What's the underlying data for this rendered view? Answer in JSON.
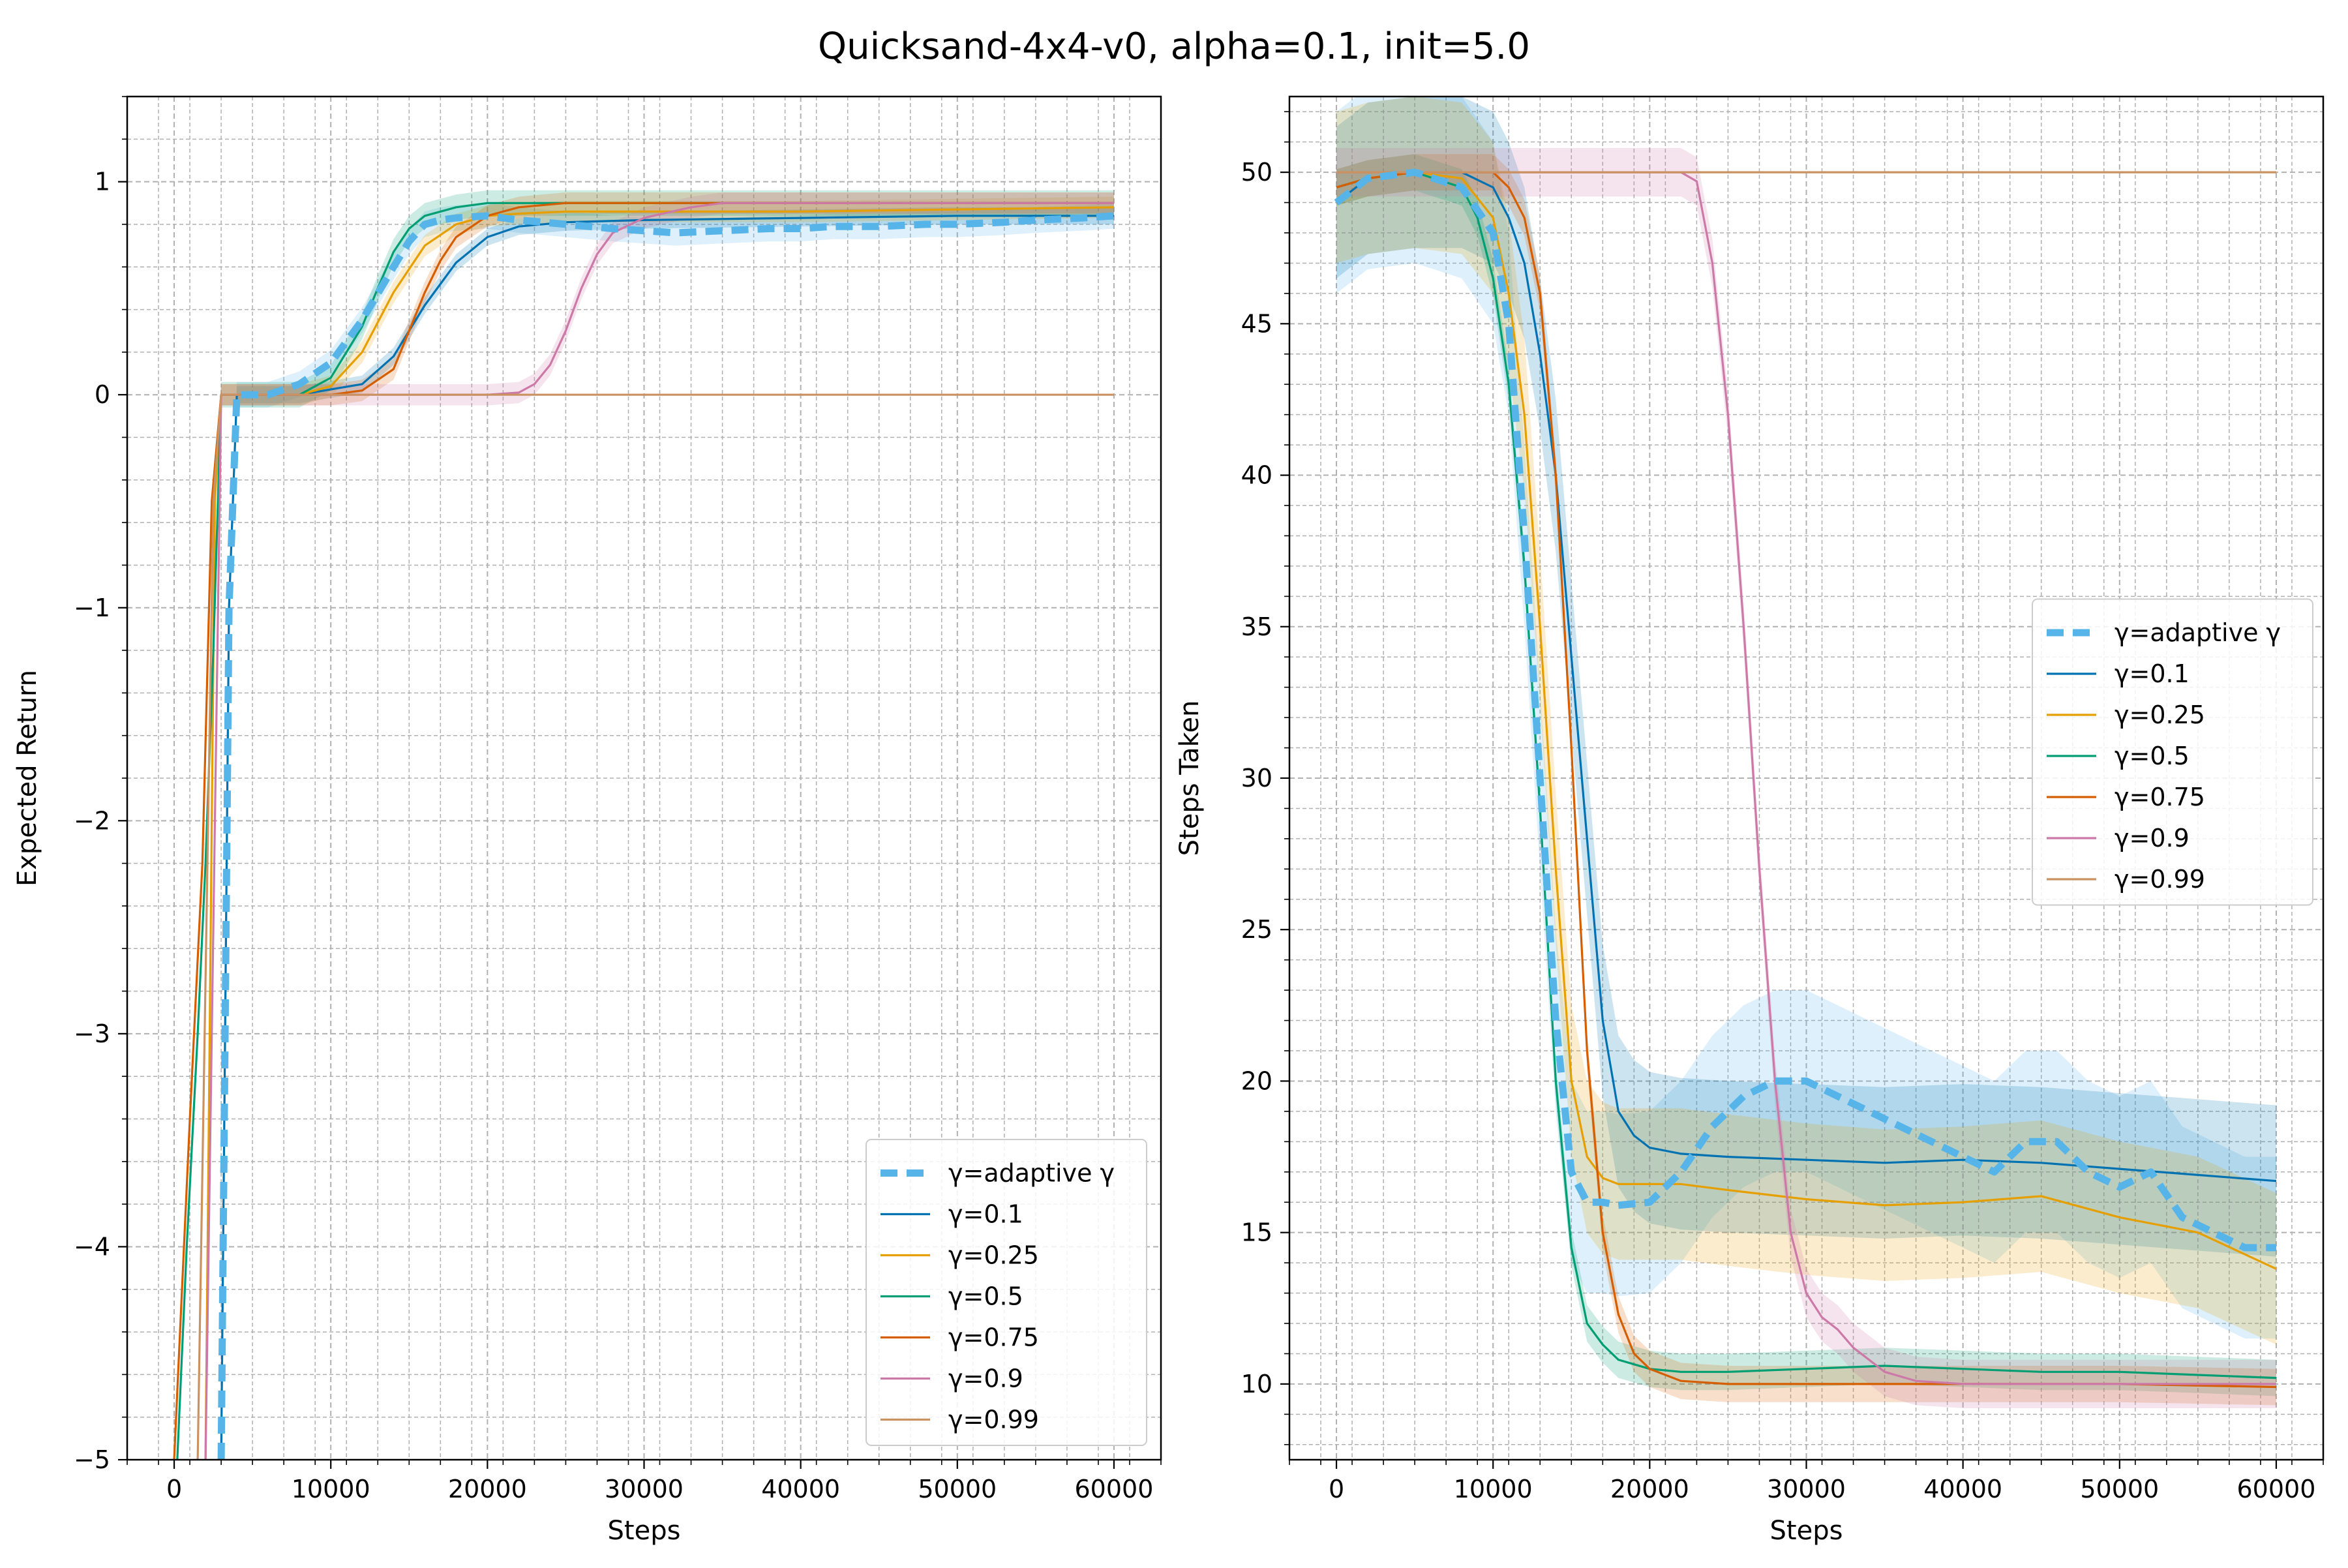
{
  "figure": {
    "title": "Quicksand-4x4-v0, alpha=0.1, init=5.0"
  },
  "colors": {
    "adaptive": "#56b4e9",
    "g0.1": "#0072b2",
    "g0.25": "#e69f00",
    "g0.5": "#009e73",
    "g0.75": "#d55e00",
    "g0.9": "#cc79a7",
    "g0.99": "#ca9161"
  },
  "chart_data": [
    {
      "type": "line",
      "xlabel": "Steps",
      "ylabel": "Expected Return",
      "xlim": [
        -3000,
        63000
      ],
      "ylim": [
        -5,
        1.4
      ],
      "xticks": [
        0,
        10000,
        20000,
        30000,
        40000,
        50000,
        60000
      ],
      "yticks": [
        -5,
        -4,
        -3,
        -2,
        -1,
        0,
        1
      ],
      "grid": true,
      "legend_position": "lower-right",
      "series": [
        {
          "name": "γ=adaptive γ",
          "color": "#56b4e9",
          "dashed": true,
          "x": [
            3000,
            3500,
            4000,
            6000,
            8000,
            10000,
            12000,
            14000,
            15000,
            16000,
            17000,
            18000,
            20000,
            22000,
            25000,
            28000,
            30000,
            32000,
            35000,
            38000,
            40000,
            42000,
            45000,
            48000,
            50000,
            53000,
            55000,
            58000,
            60000
          ],
          "y": [
            -5,
            -1,
            0,
            0,
            0.05,
            0.15,
            0.35,
            0.6,
            0.72,
            0.8,
            0.82,
            0.83,
            0.84,
            0.82,
            0.8,
            0.78,
            0.77,
            0.76,
            0.77,
            0.78,
            0.78,
            0.79,
            0.79,
            0.8,
            0.8,
            0.81,
            0.82,
            0.83,
            0.84
          ],
          "band": 0.06
        },
        {
          "name": "γ=0.1",
          "color": "#0072b2",
          "x": [
            3000,
            3500,
            4000,
            8000,
            12000,
            14000,
            16000,
            18000,
            20000,
            22000,
            25000,
            30000,
            40000,
            50000,
            60000
          ],
          "y": [
            -5,
            -1,
            0,
            0,
            0.05,
            0.18,
            0.42,
            0.62,
            0.74,
            0.79,
            0.81,
            0.82,
            0.83,
            0.84,
            0.84
          ],
          "band": 0.04
        },
        {
          "name": "γ=0.25",
          "color": "#e69f00",
          "x": [
            2000,
            2600,
            3000,
            8000,
            10000,
            12000,
            14000,
            16000,
            18000,
            20000,
            22000,
            25000,
            30000,
            40000,
            50000,
            60000
          ],
          "y": [
            -5,
            -0.5,
            0,
            0,
            0.04,
            0.2,
            0.48,
            0.7,
            0.8,
            0.84,
            0.85,
            0.86,
            0.86,
            0.86,
            0.87,
            0.88
          ],
          "band": 0.05
        },
        {
          "name": "γ=0.5",
          "color": "#009e73",
          "x": [
            200,
            800,
            1500,
            2000,
            2500,
            3000,
            8000,
            10000,
            12000,
            13000,
            14000,
            15000,
            16000,
            18000,
            20000,
            25000,
            30000,
            40000,
            50000,
            60000
          ],
          "y": [
            -5,
            -4,
            -3,
            -2.2,
            -1.2,
            0,
            0,
            0.08,
            0.32,
            0.5,
            0.67,
            0.78,
            0.84,
            0.88,
            0.9,
            0.9,
            0.9,
            0.9,
            0.9,
            0.9
          ],
          "band": 0.06
        },
        {
          "name": "γ=0.75",
          "color": "#d55e00",
          "x": [
            0,
            1000,
            1800,
            2400,
            3000,
            10000,
            12000,
            14000,
            15000,
            16000,
            17000,
            18000,
            20000,
            22000,
            25000,
            30000,
            40000,
            50000,
            60000
          ],
          "y": [
            -5,
            -3.4,
            -2.2,
            -0.5,
            0,
            0,
            0.02,
            0.12,
            0.3,
            0.48,
            0.63,
            0.74,
            0.84,
            0.88,
            0.9,
            0.9,
            0.9,
            0.9,
            0.9
          ],
          "band": 0.05
        },
        {
          "name": "γ=0.9",
          "color": "#cc79a7",
          "x": [
            2000,
            3000,
            20000,
            22000,
            23000,
            24000,
            25000,
            26000,
            27000,
            28000,
            30000,
            33000,
            35000,
            40000,
            50000,
            60000
          ],
          "y": [
            -5,
            0,
            0,
            0.01,
            0.05,
            0.14,
            0.3,
            0.5,
            0.66,
            0.76,
            0.83,
            0.88,
            0.9,
            0.9,
            0.9,
            0.9
          ],
          "band": 0.05
        },
        {
          "name": "γ=0.99",
          "color": "#ca9161",
          "x": [
            1500,
            2500,
            3000,
            10000,
            20000,
            30000,
            40000,
            50000,
            60000
          ],
          "y": [
            -5,
            -0.5,
            0,
            0,
            0,
            0,
            0,
            0,
            0
          ],
          "band": 0
        }
      ]
    },
    {
      "type": "line",
      "xlabel": "Steps",
      "ylabel": "Steps Taken",
      "xlim": [
        -3000,
        63000
      ],
      "ylim": [
        7.5,
        52.5
      ],
      "xticks": [
        0,
        10000,
        20000,
        30000,
        40000,
        50000,
        60000
      ],
      "yticks": [
        10,
        15,
        20,
        25,
        30,
        35,
        40,
        45,
        50
      ],
      "grid": true,
      "legend_position": "center-right",
      "series": [
        {
          "name": "γ=adaptive γ",
          "color": "#56b4e9",
          "dashed": true,
          "x": [
            0,
            2000,
            5000,
            8000,
            10000,
            11000,
            12000,
            13000,
            14000,
            15000,
            16000,
            17000,
            18000,
            20000,
            22000,
            24000,
            26000,
            28000,
            30000,
            32000,
            34000,
            36000,
            38000,
            40000,
            42000,
            44000,
            46000,
            48000,
            50000,
            52000,
            54000,
            56000,
            58000,
            60000
          ],
          "y": [
            49,
            49.8,
            50,
            49.5,
            48,
            45,
            38,
            30,
            22,
            17,
            16,
            16,
            15.9,
            16,
            17,
            18.5,
            19.5,
            20,
            20,
            19.5,
            19,
            18.5,
            18,
            17.5,
            17,
            18,
            18,
            17,
            16.5,
            17,
            15.5,
            15,
            14.5,
            14.5
          ],
          "band": 3
        },
        {
          "name": "γ=0.1",
          "color": "#0072b2",
          "x": [
            0,
            2000,
            5000,
            8000,
            10000,
            11000,
            12000,
            13000,
            14000,
            15000,
            16000,
            17000,
            18000,
            19000,
            20000,
            22000,
            25000,
            30000,
            35000,
            40000,
            45000,
            50000,
            55000,
            60000
          ],
          "y": [
            49,
            49.8,
            50,
            50,
            49.5,
            48.5,
            47,
            44,
            40,
            34,
            28,
            22,
            19,
            18.2,
            17.8,
            17.6,
            17.5,
            17.4,
            17.3,
            17.4,
            17.3,
            17.1,
            16.9,
            16.7
          ],
          "band": 2.5
        },
        {
          "name": "γ=0.25",
          "color": "#e69f00",
          "x": [
            0,
            2000,
            5000,
            8000,
            10000,
            11000,
            12000,
            13000,
            14000,
            15000,
            16000,
            17000,
            18000,
            20000,
            22000,
            25000,
            30000,
            35000,
            40000,
            45000,
            50000,
            55000,
            60000
          ],
          "y": [
            49.5,
            49.8,
            50,
            49.8,
            48.5,
            46,
            42,
            35,
            27,
            20,
            17.5,
            16.8,
            16.6,
            16.6,
            16.6,
            16.4,
            16.1,
            15.9,
            16,
            16.2,
            15.5,
            15,
            13.8
          ],
          "band": 2.5
        },
        {
          "name": "γ=0.5",
          "color": "#009e73",
          "x": [
            0,
            2000,
            5000,
            8000,
            9000,
            10000,
            11000,
            12000,
            13000,
            14000,
            15000,
            16000,
            17000,
            18000,
            20000,
            22000,
            25000,
            30000,
            35000,
            40000,
            45000,
            50000,
            55000,
            60000
          ],
          "y": [
            49.5,
            49.8,
            50,
            49.5,
            48.5,
            46.5,
            43,
            37,
            29,
            20,
            14.5,
            12,
            11.3,
            10.8,
            10.5,
            10.4,
            10.4,
            10.5,
            10.6,
            10.5,
            10.4,
            10.4,
            10.3,
            10.2
          ],
          "band": 0.6
        },
        {
          "name": "γ=0.75",
          "color": "#d55e00",
          "x": [
            0,
            2000,
            5000,
            8000,
            10000,
            11000,
            12000,
            13000,
            14000,
            15000,
            16000,
            17000,
            18000,
            19000,
            20000,
            22000,
            25000,
            30000,
            40000,
            50000,
            60000
          ],
          "y": [
            49.5,
            49.8,
            50,
            50,
            50,
            49.5,
            48.5,
            46,
            40,
            31,
            21,
            15,
            12.3,
            11,
            10.5,
            10.1,
            10,
            10,
            10,
            10,
            9.9
          ],
          "band": 0.6
        },
        {
          "name": "γ=0.9",
          "color": "#cc79a7",
          "x": [
            0,
            2000,
            5000,
            10000,
            15000,
            20000,
            22000,
            23000,
            24000,
            25000,
            26000,
            27000,
            28000,
            29000,
            30000,
            31000,
            32000,
            33000,
            34000,
            35000,
            37000,
            40000,
            50000,
            60000
          ],
          "y": [
            50,
            50,
            50,
            50,
            50,
            50,
            50,
            49.7,
            47,
            42,
            35,
            27,
            20,
            15,
            13,
            12.2,
            11.8,
            11.2,
            10.8,
            10.4,
            10.1,
            10,
            10,
            10
          ],
          "band": 0.8
        },
        {
          "name": "γ=0.99",
          "color": "#ca9161",
          "x": [
            0,
            10000,
            20000,
            30000,
            40000,
            50000,
            60000
          ],
          "y": [
            50,
            50,
            50,
            50,
            50,
            50,
            50
          ],
          "band": 0
        }
      ]
    }
  ]
}
